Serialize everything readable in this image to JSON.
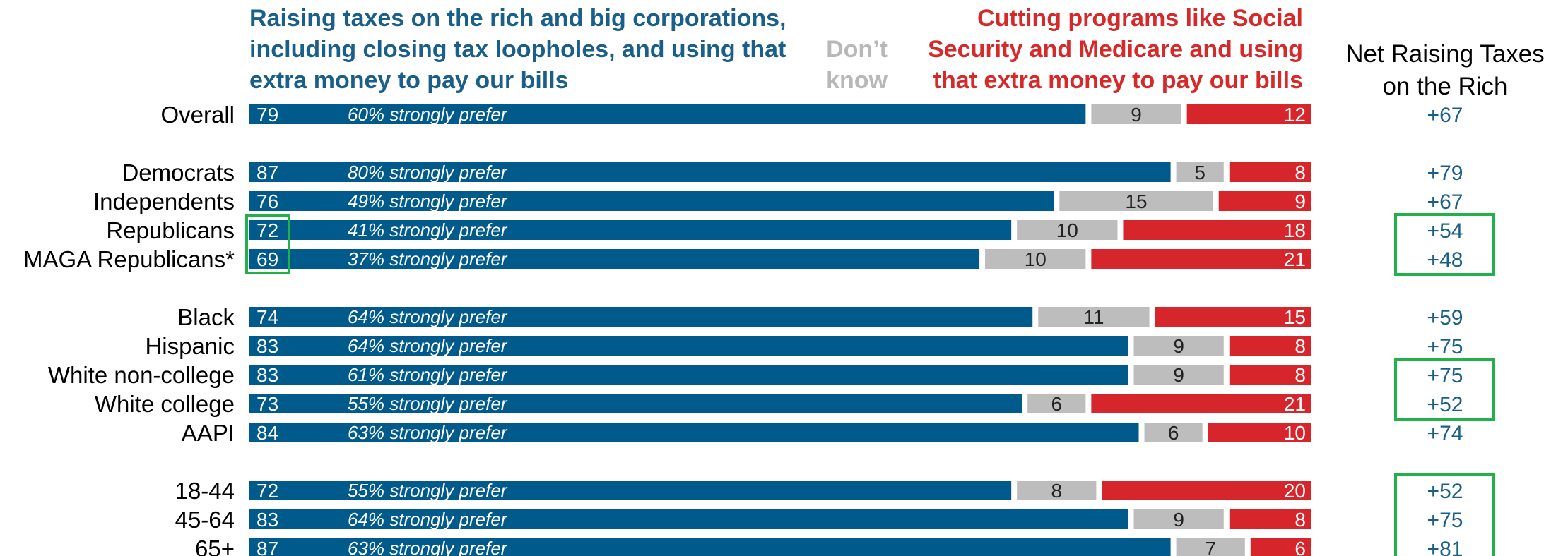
{
  "headers": {
    "left": [
      "Raising taxes on the rich and big corporations,",
      "including closing tax loopholes, and using that",
      "extra money to pay our bills"
    ],
    "middle": [
      "Don’t",
      "know"
    ],
    "right": [
      "Cutting programs like Social",
      "Security and Medicare and using",
      "that extra money to pay our bills"
    ],
    "net": [
      "Net Raising Taxes",
      "on the Rich"
    ]
  },
  "colors": {
    "raise": "#005b8c",
    "dont_know": "#bdbdbd",
    "cut": "#d7262b",
    "net_text": "#1a5f8a",
    "highlight": "#22b04a",
    "label": "#000000"
  },
  "chart_data": {
    "type": "bar",
    "stacked": "horizontal-100",
    "series": [
      {
        "name": "Raising taxes on the rich and big corporations, including closing tax loopholes, and using that extra money to pay our bills"
      },
      {
        "name": "Don’t know"
      },
      {
        "name": "Cutting programs like Social Security and Medicare and using that extra money to pay our bills"
      }
    ],
    "groups": [
      {
        "rows": [
          {
            "label": "Overall",
            "raise": 79,
            "dk": 9,
            "cut": 12,
            "strong": "60% strongly prefer",
            "net": "+67"
          }
        ]
      },
      {
        "rows": [
          {
            "label": "Democrats",
            "raise": 87,
            "dk": 5,
            "cut": 8,
            "strong": "80% strongly prefer",
            "net": "+79"
          },
          {
            "label": "Independents",
            "raise": 76,
            "dk": 15,
            "cut": 9,
            "strong": "49% strongly prefer",
            "net": "+67"
          },
          {
            "label": "Republicans",
            "raise": 72,
            "dk": 10,
            "cut": 18,
            "strong": "41% strongly prefer",
            "net": "+54"
          },
          {
            "label": "MAGA Republicans*",
            "raise": 69,
            "dk": 10,
            "cut": 21,
            "strong": "37% strongly prefer",
            "net": "+48"
          }
        ]
      },
      {
        "rows": [
          {
            "label": "Black",
            "raise": 74,
            "dk": 11,
            "cut": 15,
            "strong": "64% strongly prefer",
            "net": "+59"
          },
          {
            "label": "Hispanic",
            "raise": 83,
            "dk": 9,
            "cut": 8,
            "strong": "64% strongly prefer",
            "net": "+75"
          },
          {
            "label": "White non-college",
            "raise": 83,
            "dk": 9,
            "cut": 8,
            "strong": "61% strongly prefer",
            "net": "+75"
          },
          {
            "label": "White college",
            "raise": 73,
            "dk": 6,
            "cut": 21,
            "strong": "55% strongly prefer",
            "net": "+52"
          },
          {
            "label": "AAPI",
            "raise": 84,
            "dk": 6,
            "cut": 10,
            "strong": "63% strongly prefer",
            "net": "+74"
          }
        ]
      },
      {
        "rows": [
          {
            "label": "18-44",
            "raise": 72,
            "dk": 8,
            "cut": 20,
            "strong": "55% strongly prefer",
            "net": "+52"
          },
          {
            "label": "45-64",
            "raise": 83,
            "dk": 9,
            "cut": 8,
            "strong": "64% strongly prefer",
            "net": "+75"
          },
          {
            "label": "65+",
            "raise": 87,
            "dk": 7,
            "cut": 6,
            "strong": "63% strongly prefer",
            "net": "+81"
          }
        ]
      }
    ],
    "highlights": {
      "raise_value": [
        [
          "Republicans",
          "MAGA Republicans*"
        ]
      ],
      "net": [
        [
          "Republicans",
          "MAGA Republicans*"
        ],
        [
          "White non-college",
          "White college"
        ],
        [
          "18-44",
          "45-64",
          "65+"
        ]
      ]
    }
  }
}
